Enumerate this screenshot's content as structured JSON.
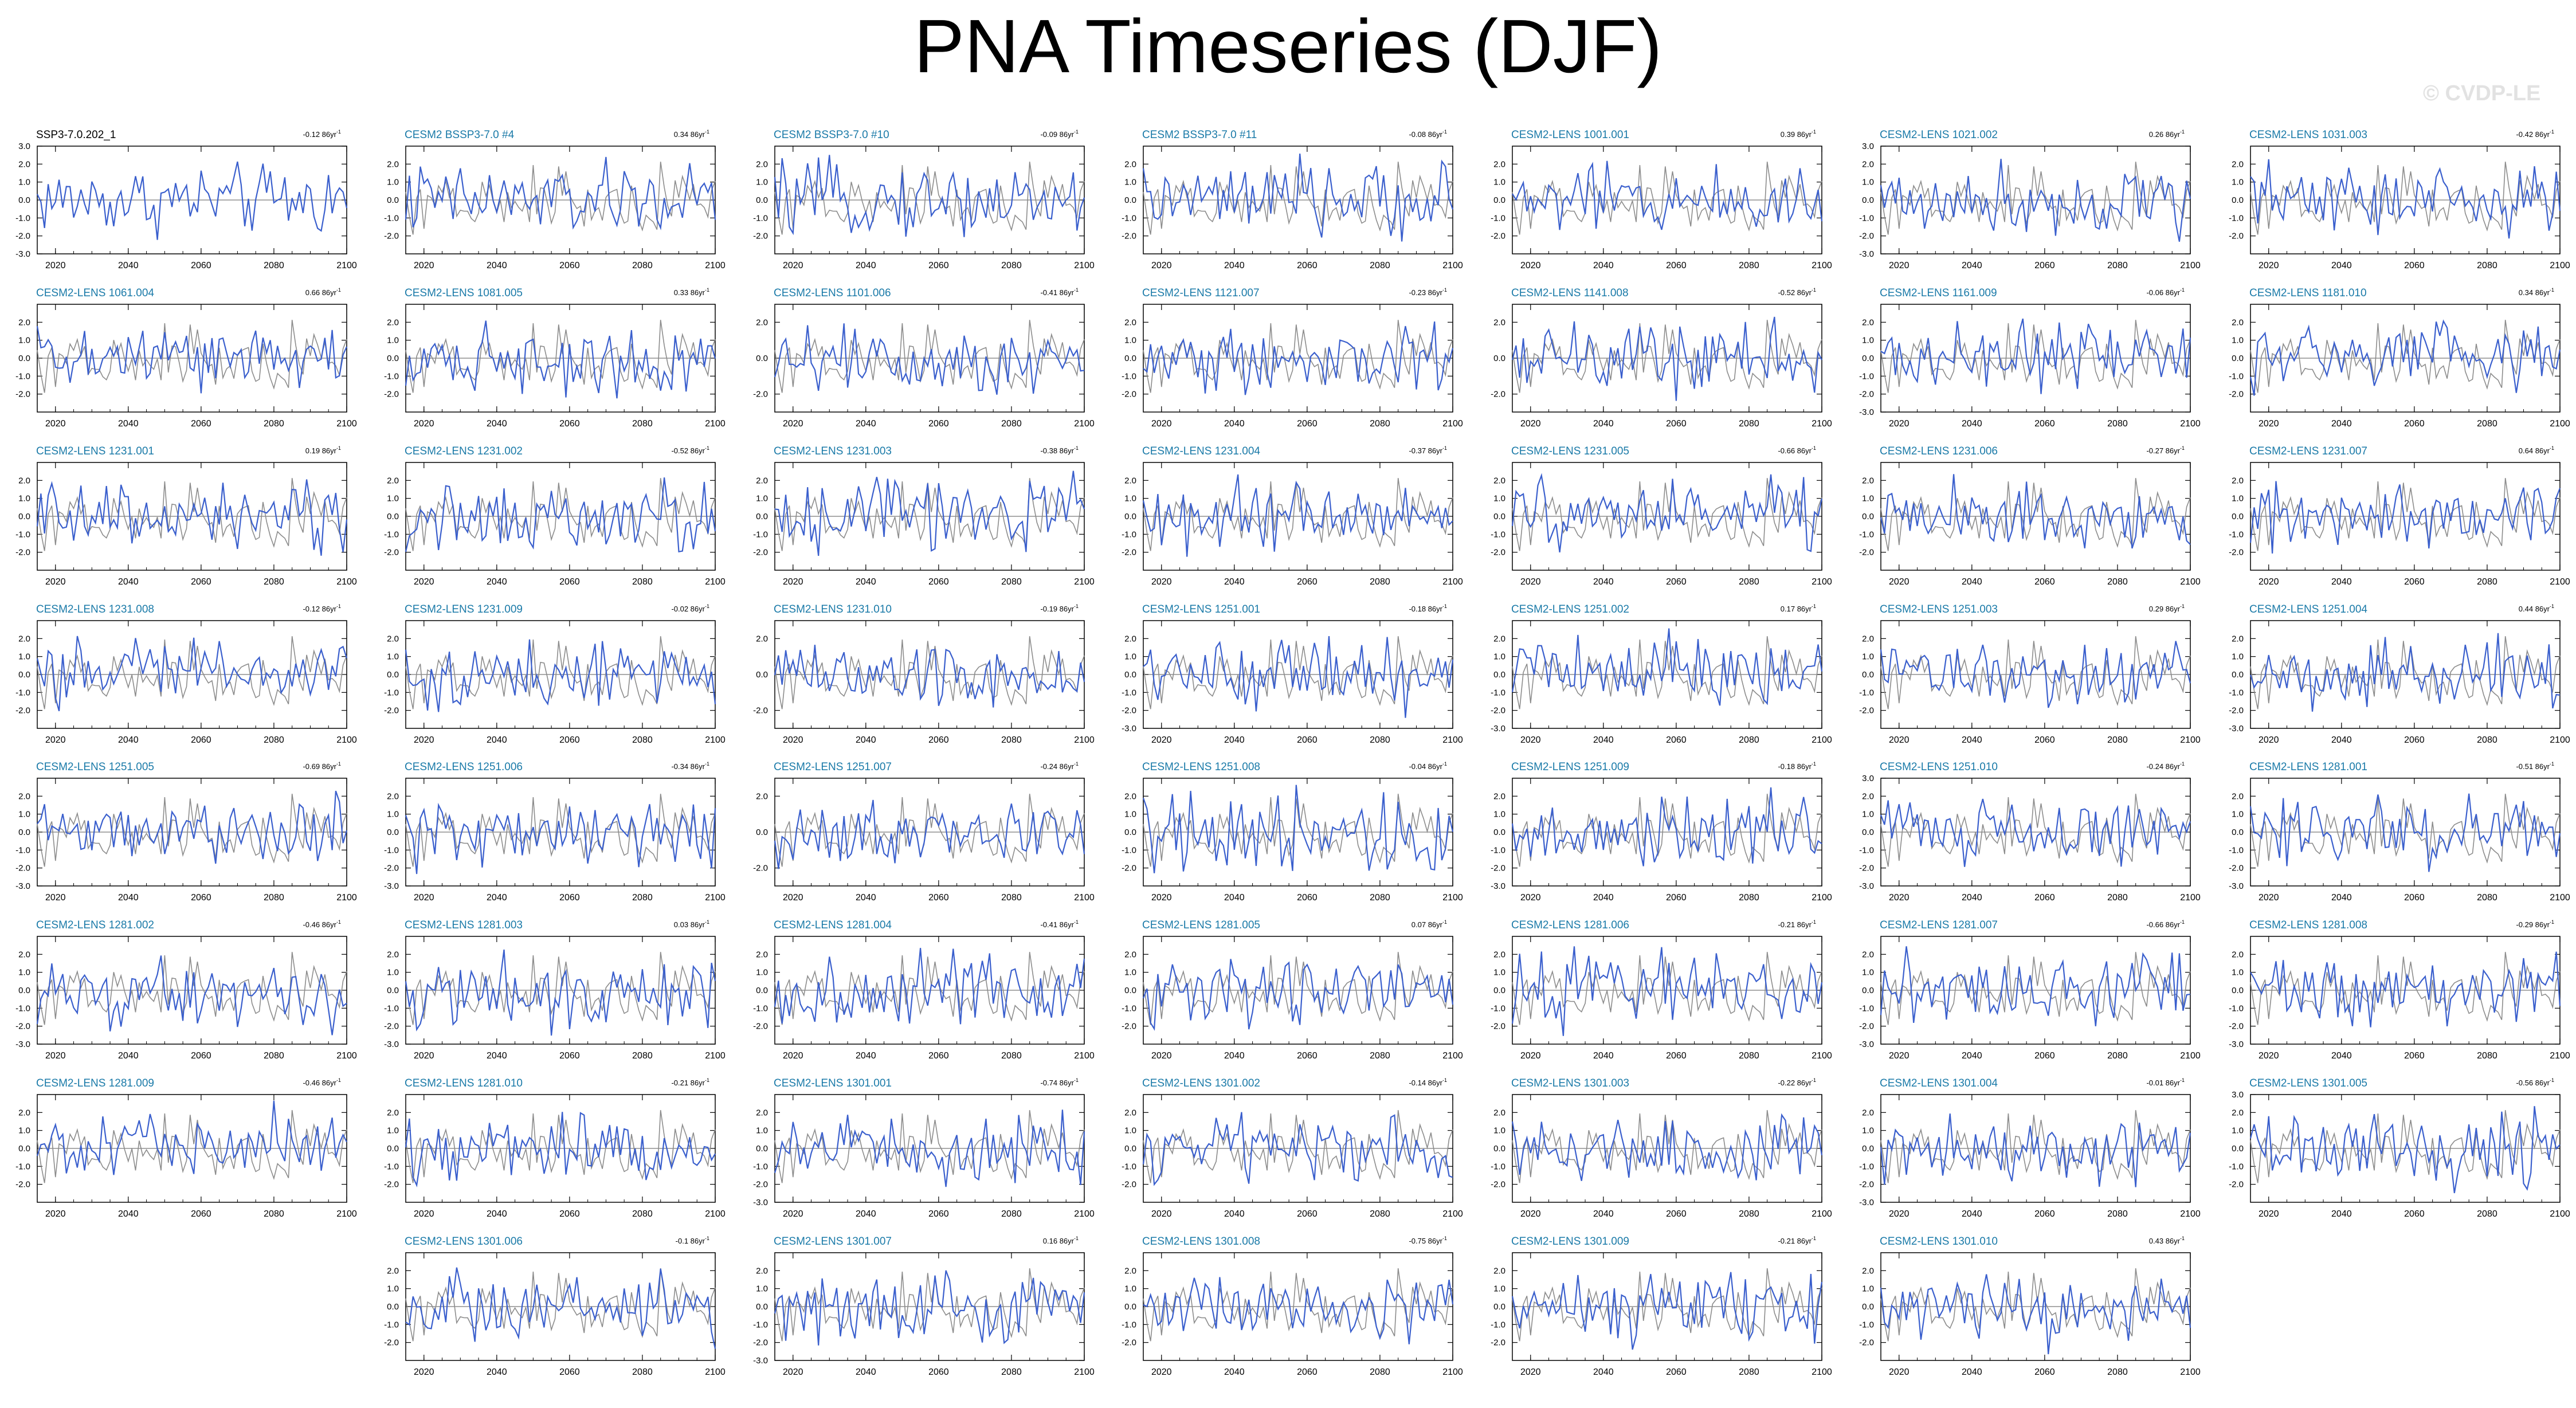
{
  "title": "PNA Timeseries (DJF)",
  "credit": "© CVDP-LE",
  "colors": {
    "obs": "#000000",
    "model": "#3a5fcd",
    "obs_line": "#8c8c8c",
    "label": "#1a7aa8"
  },
  "x_ticks": [
    "2020",
    "2040",
    "2060",
    "2080",
    "2100"
  ],
  "trend_unit": "86yr",
  "chart_data": [
    {
      "type": "line",
      "label": "SSP3-7.0.202_1",
      "trend": "-0.12",
      "ylim": [
        -3,
        3
      ],
      "yticks": [
        "3.0",
        "2.0",
        "1.0",
        "0.0",
        "-1.0",
        "-2.0",
        "-3.0"
      ],
      "xlim": [
        2015,
        2100
      ]
    },
    {
      "type": "line",
      "label": "CESM2 BSSP3-7.0 #4",
      "trend": "0.34",
      "ylim": [
        -3,
        3
      ],
      "yticks": [
        "2.0",
        "1.0",
        "0.0",
        "-1.0",
        "-2.0"
      ],
      "xlim": [
        2015,
        2100
      ]
    },
    {
      "type": "line",
      "label": "CESM2 BSSP3-7.0 #10",
      "trend": "-0.09",
      "ylim": [
        -3,
        3
      ],
      "yticks": [
        "2.0",
        "1.0",
        "0.0",
        "-1.0",
        "-2.0"
      ],
      "xlim": [
        2015,
        2100
      ]
    },
    {
      "type": "line",
      "label": "CESM2 BSSP3-7.0 #11",
      "trend": "-0.08",
      "ylim": [
        -3,
        3
      ],
      "yticks": [
        "2.0",
        "1.0",
        "0.0",
        "-1.0",
        "-2.0"
      ],
      "xlim": [
        2015,
        2100
      ]
    },
    {
      "type": "line",
      "label": "CESM2-LENS 1001.001",
      "trend": "0.39",
      "ylim": [
        -3,
        3
      ],
      "yticks": [
        "2.0",
        "1.0",
        "0.0",
        "-1.0",
        "-2.0"
      ],
      "xlim": [
        2015,
        2100
      ]
    },
    {
      "type": "line",
      "label": "CESM2-LENS 1021.002",
      "trend": "0.26",
      "ylim": [
        -3,
        3
      ],
      "yticks": [
        "3.0",
        "2.0",
        "1.0",
        "0.0",
        "-1.0",
        "-2.0",
        "-3.0"
      ],
      "xlim": [
        2015,
        2100
      ]
    },
    {
      "type": "line",
      "label": "CESM2-LENS 1031.003",
      "trend": "-0.42",
      "ylim": [
        -3,
        3
      ],
      "yticks": [
        "2.0",
        "1.0",
        "0.0",
        "-1.0",
        "-2.0"
      ],
      "xlim": [
        2015,
        2100
      ]
    },
    {
      "type": "line",
      "label": "CESM2-LENS 1061.004",
      "trend": "0.66",
      "ylim": [
        -3,
        3
      ],
      "yticks": [
        "2.0",
        "1.0",
        "0.0",
        "-1.0",
        "-2.0"
      ],
      "xlim": [
        2015,
        2100
      ]
    },
    {
      "type": "line",
      "label": "CESM2-LENS 1081.005",
      "trend": "0.33",
      "ylim": [
        -3,
        3
      ],
      "yticks": [
        "2.0",
        "1.0",
        "0.0",
        "-1.0",
        "-2.0"
      ],
      "xlim": [
        2015,
        2100
      ]
    },
    {
      "type": "line",
      "label": "CESM2-LENS 1101.006",
      "trend": "-0.41",
      "ylim": [
        -3,
        3
      ],
      "yticks": [
        "2.0",
        "0.0",
        "-2.0"
      ],
      "xlim": [
        2015,
        2100
      ]
    },
    {
      "type": "line",
      "label": "CESM2-LENS 1121.007",
      "trend": "-0.23",
      "ylim": [
        -3,
        3
      ],
      "yticks": [
        "2.0",
        "1.0",
        "0.0",
        "-1.0",
        "-2.0"
      ],
      "xlim": [
        2015,
        2100
      ]
    },
    {
      "type": "line",
      "label": "CESM2-LENS 1141.008",
      "trend": "-0.52",
      "ylim": [
        -3,
        3
      ],
      "yticks": [
        "2.0",
        "0.0",
        "-2.0"
      ],
      "xlim": [
        2015,
        2100
      ]
    },
    {
      "type": "line",
      "label": "CESM2-LENS 1161.009",
      "trend": "-0.06",
      "ylim": [
        -3,
        3
      ],
      "yticks": [
        "2.0",
        "1.0",
        "0.0",
        "-1.0",
        "-2.0",
        "-3.0"
      ],
      "xlim": [
        2015,
        2100
      ]
    },
    {
      "type": "line",
      "label": "CESM2-LENS 1181.010",
      "trend": "0.34",
      "ylim": [
        -3,
        3
      ],
      "yticks": [
        "2.0",
        "1.0",
        "0.0",
        "-1.0",
        "-2.0"
      ],
      "xlim": [
        2015,
        2100
      ]
    },
    {
      "type": "line",
      "label": "CESM2-LENS 1231.001",
      "trend": "0.19",
      "ylim": [
        -3,
        3
      ],
      "yticks": [
        "2.0",
        "1.0",
        "0.0",
        "-1.0",
        "-2.0"
      ],
      "xlim": [
        2015,
        2100
      ]
    },
    {
      "type": "line",
      "label": "CESM2-LENS 1231.002",
      "trend": "-0.52",
      "ylim": [
        -3,
        3
      ],
      "yticks": [
        "2.0",
        "1.0",
        "0.0",
        "-1.0",
        "-2.0"
      ],
      "xlim": [
        2015,
        2100
      ]
    },
    {
      "type": "line",
      "label": "CESM2-LENS 1231.003",
      "trend": "-0.38",
      "ylim": [
        -3,
        3
      ],
      "yticks": [
        "2.0",
        "1.0",
        "0.0",
        "-1.0",
        "-2.0"
      ],
      "xlim": [
        2015,
        2100
      ]
    },
    {
      "type": "line",
      "label": "CESM2-LENS 1231.004",
      "trend": "-0.37",
      "ylim": [
        -3,
        3
      ],
      "yticks": [
        "2.0",
        "1.0",
        "0.0",
        "-1.0",
        "-2.0"
      ],
      "xlim": [
        2015,
        2100
      ]
    },
    {
      "type": "line",
      "label": "CESM2-LENS 1231.005",
      "trend": "-0.66",
      "ylim": [
        -3,
        3
      ],
      "yticks": [
        "2.0",
        "1.0",
        "0.0",
        "-1.0",
        "-2.0"
      ],
      "xlim": [
        2015,
        2100
      ]
    },
    {
      "type": "line",
      "label": "CESM2-LENS 1231.006",
      "trend": "-0.27",
      "ylim": [
        -3,
        3
      ],
      "yticks": [
        "2.0",
        "1.0",
        "0.0",
        "-1.0",
        "-2.0"
      ],
      "xlim": [
        2015,
        2100
      ]
    },
    {
      "type": "line",
      "label": "CESM2-LENS 1231.007",
      "trend": "0.64",
      "ylim": [
        -3,
        3
      ],
      "yticks": [
        "2.0",
        "1.0",
        "0.0",
        "-1.0",
        "-2.0"
      ],
      "xlim": [
        2015,
        2100
      ]
    },
    {
      "type": "line",
      "label": "CESM2-LENS 1231.008",
      "trend": "-0.12",
      "ylim": [
        -3,
        3
      ],
      "yticks": [
        "2.0",
        "1.0",
        "0.0",
        "-1.0",
        "-2.0"
      ],
      "xlim": [
        2015,
        2100
      ]
    },
    {
      "type": "line",
      "label": "CESM2-LENS 1231.009",
      "trend": "-0.02",
      "ylim": [
        -3,
        3
      ],
      "yticks": [
        "2.0",
        "1.0",
        "0.0",
        "-1.0",
        "-2.0"
      ],
      "xlim": [
        2015,
        2100
      ]
    },
    {
      "type": "line",
      "label": "CESM2-LENS 1231.010",
      "trend": "-0.19",
      "ylim": [
        -3,
        3
      ],
      "yticks": [
        "2.0",
        "0.0",
        "-2.0"
      ],
      "xlim": [
        2015,
        2100
      ]
    },
    {
      "type": "line",
      "label": "CESM2-LENS 1251.001",
      "trend": "-0.18",
      "ylim": [
        -3,
        3
      ],
      "yticks": [
        "2.0",
        "1.0",
        "0.0",
        "-1.0",
        "-2.0",
        "-3.0"
      ],
      "xlim": [
        2015,
        2100
      ]
    },
    {
      "type": "line",
      "label": "CESM2-LENS 1251.002",
      "trend": "0.17",
      "ylim": [
        -3,
        3
      ],
      "yticks": [
        "2.0",
        "1.0",
        "0.0",
        "-1.0",
        "-2.0",
        "-3.0"
      ],
      "xlim": [
        2015,
        2100
      ]
    },
    {
      "type": "line",
      "label": "CESM2-LENS 1251.003",
      "trend": "0.29",
      "ylim": [
        -3,
        3
      ],
      "yticks": [
        "2.0",
        "1.0",
        "0.0",
        "-1.0",
        "-2.0"
      ],
      "xlim": [
        2015,
        2100
      ]
    },
    {
      "type": "line",
      "label": "CESM2-LENS 1251.004",
      "trend": "0.44",
      "ylim": [
        -3,
        3
      ],
      "yticks": [
        "2.0",
        "1.0",
        "0.0",
        "-1.0",
        "-2.0",
        "-3.0"
      ],
      "xlim": [
        2015,
        2100
      ]
    },
    {
      "type": "line",
      "label": "CESM2-LENS 1251.005",
      "trend": "-0.69",
      "ylim": [
        -3,
        3
      ],
      "yticks": [
        "2.0",
        "1.0",
        "0.0",
        "-1.0",
        "-2.0",
        "-3.0"
      ],
      "xlim": [
        2015,
        2100
      ]
    },
    {
      "type": "line",
      "label": "CESM2-LENS 1251.006",
      "trend": "-0.34",
      "ylim": [
        -3,
        3
      ],
      "yticks": [
        "2.0",
        "1.0",
        "0.0",
        "-1.0",
        "-2.0",
        "-3.0"
      ],
      "xlim": [
        2015,
        2100
      ]
    },
    {
      "type": "line",
      "label": "CESM2-LENS 1251.007",
      "trend": "-0.24",
      "ylim": [
        -3,
        3
      ],
      "yticks": [
        "2.0",
        "0.0",
        "-2.0"
      ],
      "xlim": [
        2015,
        2100
      ]
    },
    {
      "type": "line",
      "label": "CESM2-LENS 1251.008",
      "trend": "-0.04",
      "ylim": [
        -3,
        3
      ],
      "yticks": [
        "2.0",
        "1.0",
        "0.0",
        "-1.0",
        "-2.0"
      ],
      "xlim": [
        2015,
        2100
      ]
    },
    {
      "type": "line",
      "label": "CESM2-LENS 1251.009",
      "trend": "-0.18",
      "ylim": [
        -3,
        3
      ],
      "yticks": [
        "2.0",
        "1.0",
        "0.0",
        "-1.0",
        "-2.0",
        "-3.0"
      ],
      "xlim": [
        2015,
        2100
      ]
    },
    {
      "type": "line",
      "label": "CESM2-LENS 1251.010",
      "trend": "-0.24",
      "ylim": [
        -3,
        3
      ],
      "yticks": [
        "3.0",
        "2.0",
        "1.0",
        "0.0",
        "-1.0",
        "-2.0",
        "-3.0"
      ],
      "xlim": [
        2015,
        2100
      ]
    },
    {
      "type": "line",
      "label": "CESM2-LENS 1281.001",
      "trend": "-0.51",
      "ylim": [
        -3,
        3
      ],
      "yticks": [
        "2.0",
        "1.0",
        "0.0",
        "-1.0",
        "-2.0",
        "-3.0"
      ],
      "xlim": [
        2015,
        2100
      ]
    },
    {
      "type": "line",
      "label": "CESM2-LENS 1281.002",
      "trend": "-0.46",
      "ylim": [
        -3,
        3
      ],
      "yticks": [
        "2.0",
        "1.0",
        "0.0",
        "-1.0",
        "-2.0",
        "-3.0"
      ],
      "xlim": [
        2015,
        2100
      ]
    },
    {
      "type": "line",
      "label": "CESM2-LENS 1281.003",
      "trend": "0.03",
      "ylim": [
        -3,
        3
      ],
      "yticks": [
        "2.0",
        "1.0",
        "0.0",
        "-1.0",
        "-2.0",
        "-3.0"
      ],
      "xlim": [
        2015,
        2100
      ]
    },
    {
      "type": "line",
      "label": "CESM2-LENS 1281.004",
      "trend": "-0.41",
      "ylim": [
        -3,
        3
      ],
      "yticks": [
        "2.0",
        "1.0",
        "0.0",
        "-1.0",
        "-2.0"
      ],
      "xlim": [
        2015,
        2100
      ]
    },
    {
      "type": "line",
      "label": "CESM2-LENS 1281.005",
      "trend": "0.07",
      "ylim": [
        -3,
        3
      ],
      "yticks": [
        "2.0",
        "1.0",
        "0.0",
        "-1.0",
        "-2.0"
      ],
      "xlim": [
        2015,
        2100
      ]
    },
    {
      "type": "line",
      "label": "CESM2-LENS 1281.006",
      "trend": "-0.21",
      "ylim": [
        -3,
        3
      ],
      "yticks": [
        "2.0",
        "1.0",
        "0.0",
        "-1.0",
        "-2.0"
      ],
      "xlim": [
        2015,
        2100
      ]
    },
    {
      "type": "line",
      "label": "CESM2-LENS 1281.007",
      "trend": "-0.66",
      "ylim": [
        -3,
        3
      ],
      "yticks": [
        "2.0",
        "1.0",
        "0.0",
        "-1.0",
        "-2.0",
        "-3.0"
      ],
      "xlim": [
        2015,
        2100
      ]
    },
    {
      "type": "line",
      "label": "CESM2-LENS 1281.008",
      "trend": "-0.29",
      "ylim": [
        -3,
        3
      ],
      "yticks": [
        "2.0",
        "1.0",
        "0.0",
        "-1.0",
        "-2.0",
        "-3.0"
      ],
      "xlim": [
        2015,
        2100
      ]
    },
    {
      "type": "line",
      "label": "CESM2-LENS 1281.009",
      "trend": "-0.46",
      "ylim": [
        -3,
        3
      ],
      "yticks": [
        "2.0",
        "1.0",
        "0.0",
        "-1.0",
        "-2.0"
      ],
      "xlim": [
        2015,
        2100
      ]
    },
    {
      "type": "line",
      "label": "CESM2-LENS 1281.010",
      "trend": "-0.21",
      "ylim": [
        -3,
        3
      ],
      "yticks": [
        "2.0",
        "1.0",
        "0.0",
        "-1.0",
        "-2.0"
      ],
      "xlim": [
        2015,
        2100
      ]
    },
    {
      "type": "line",
      "label": "CESM2-LENS 1301.001",
      "trend": "-0.74",
      "ylim": [
        -3,
        3
      ],
      "yticks": [
        "2.0",
        "1.0",
        "0.0",
        "-1.0",
        "-2.0",
        "-3.0"
      ],
      "xlim": [
        2015,
        2100
      ]
    },
    {
      "type": "line",
      "label": "CESM2-LENS 1301.002",
      "trend": "-0.14",
      "ylim": [
        -3,
        3
      ],
      "yticks": [
        "2.0",
        "1.0",
        "0.0",
        "-1.0",
        "-2.0"
      ],
      "xlim": [
        2015,
        2100
      ]
    },
    {
      "type": "line",
      "label": "CESM2-LENS 1301.003",
      "trend": "-0.22",
      "ylim": [
        -3,
        3
      ],
      "yticks": [
        "2.0",
        "1.0",
        "0.0",
        "-1.0",
        "-2.0"
      ],
      "xlim": [
        2015,
        2100
      ]
    },
    {
      "type": "line",
      "label": "CESM2-LENS 1301.004",
      "trend": "-0.01",
      "ylim": [
        -3,
        3
      ],
      "yticks": [
        "2.0",
        "1.0",
        "0.0",
        "-1.0",
        "-2.0",
        "-3.0"
      ],
      "xlim": [
        2015,
        2100
      ]
    },
    {
      "type": "line",
      "label": "CESM2-LENS 1301.005",
      "trend": "-0.56",
      "ylim": [
        -3,
        3
      ],
      "yticks": [
        "3.0",
        "2.0",
        "1.0",
        "0.0",
        "-1.0",
        "-2.0"
      ],
      "xlim": [
        2015,
        2100
      ]
    },
    {
      "type": "line",
      "label": "CESM2-LENS 1301.006",
      "trend": "-0.1",
      "ylim": [
        -3,
        3
      ],
      "yticks": [
        "2.0",
        "1.0",
        "0.0",
        "-1.0",
        "-2.0"
      ],
      "xlim": [
        2015,
        2100
      ]
    },
    {
      "type": "line",
      "label": "CESM2-LENS 1301.007",
      "trend": "0.16",
      "ylim": [
        -3,
        3
      ],
      "yticks": [
        "2.0",
        "1.0",
        "0.0",
        "-1.0",
        "-2.0",
        "-3.0"
      ],
      "xlim": [
        2015,
        2100
      ]
    },
    {
      "type": "line",
      "label": "CESM2-LENS 1301.008",
      "trend": "-0.75",
      "ylim": [
        -3,
        3
      ],
      "yticks": [
        "2.0",
        "1.0",
        "0.0",
        "-1.0",
        "-2.0"
      ],
      "xlim": [
        2015,
        2100
      ]
    },
    {
      "type": "line",
      "label": "CESM2-LENS 1301.009",
      "trend": "-0.21",
      "ylim": [
        -3,
        3
      ],
      "yticks": [
        "2.0",
        "1.0",
        "0.0",
        "-1.0",
        "-2.0"
      ],
      "xlim": [
        2015,
        2100
      ]
    },
    {
      "type": "line",
      "label": "CESM2-LENS 1301.010",
      "trend": "0.43",
      "ylim": [
        -3,
        3
      ],
      "yticks": [
        "2.0",
        "1.0",
        "0.0",
        "-1.0",
        "-2.0"
      ],
      "xlim": [
        2015,
        2100
      ]
    }
  ]
}
